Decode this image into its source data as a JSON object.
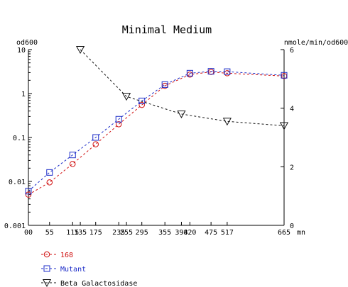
{
  "chart_data": {
    "type": "line",
    "title": "Minimal Medium",
    "y_left_label": "od600",
    "y_right_label": "nmole/min/od600",
    "x_unit": "mn",
    "x_ticks": [
      0,
      55,
      115,
      135,
      175,
      235,
      255,
      295,
      355,
      398,
      420,
      475,
      517,
      665
    ],
    "x_tick_labels": [
      "00",
      "55",
      "115",
      "135",
      "175",
      "235",
      "255",
      "295",
      "355",
      "398",
      "420",
      "475",
      "517",
      "665"
    ],
    "xlim": [
      0,
      665
    ],
    "y_left_scale": "log",
    "y_left_lim": [
      0.001,
      10
    ],
    "y_left_ticks": [
      0.001,
      0.01,
      0.1,
      1,
      10
    ],
    "y_left_tick_labels": [
      "0.001",
      "0.01",
      "0.1",
      "1",
      "10"
    ],
    "y_right_lim": [
      0,
      6
    ],
    "y_right_ticks": [
      0,
      2,
      4,
      6
    ],
    "y_right_tick_labels": [
      "0",
      "2",
      "4",
      "6"
    ],
    "legend_position": "bottom-left",
    "series": [
      {
        "name": "168",
        "axis": "left",
        "marker": "circle",
        "color": "#d01010",
        "dash": "3,3",
        "x": [
          0,
          55,
          115,
          175,
          235,
          295,
          355,
          420,
          475,
          517,
          665
        ],
        "y": [
          0.005,
          0.0095,
          0.025,
          0.07,
          0.2,
          0.55,
          1.5,
          2.7,
          3.1,
          2.9,
          2.5
        ]
      },
      {
        "name": "Mutant",
        "axis": "left",
        "marker": "square",
        "color": "#1c2cc8",
        "dash": "3,3",
        "x": [
          0,
          55,
          115,
          175,
          235,
          295,
          355,
          420,
          475,
          517,
          665
        ],
        "y": [
          0.006,
          0.016,
          0.04,
          0.1,
          0.26,
          0.68,
          1.6,
          2.9,
          3.2,
          3.15,
          2.6
        ]
      },
      {
        "name": "Beta Galactosidase",
        "axis": "right",
        "marker": "triangle-down",
        "color": "#111111",
        "dash": "3,3",
        "x": [
          135,
          255,
          398,
          517,
          665
        ],
        "y": [
          6.0,
          4.4,
          3.8,
          3.55,
          3.4
        ]
      }
    ]
  }
}
